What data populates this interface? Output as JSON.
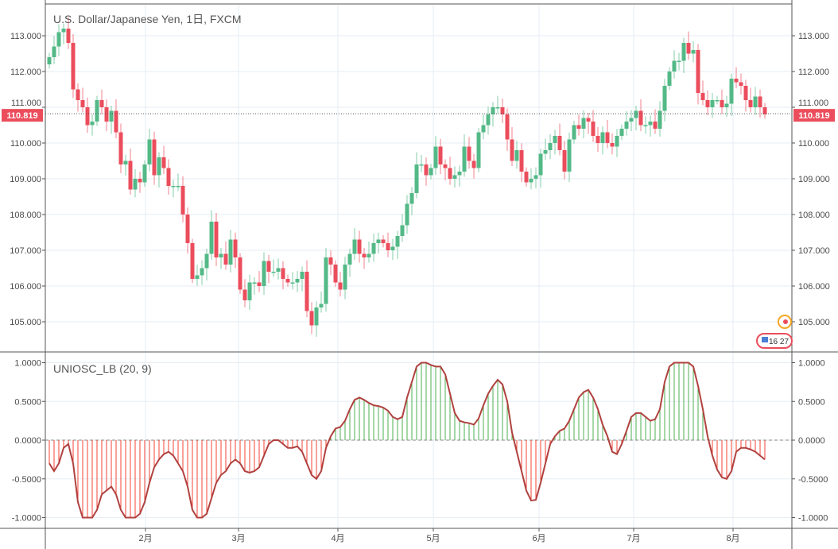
{
  "chart_data": [
    {
      "type": "candlestick",
      "title": "U.S. Dollar/Japanese Yen, 1日, FXCM",
      "yticks": [
        "113.000",
        "112.000",
        "111.000",
        "110.000",
        "109.000",
        "108.000",
        "107.000",
        "106.000",
        "105.000"
      ],
      "ylim": [
        104.2,
        113.9
      ],
      "last_price": "110.819",
      "colors": {
        "up": "#53b987",
        "down": "#eb4d5c",
        "grid": "#e6eef4"
      },
      "closes": [
        112.4,
        112.7,
        113.1,
        113.2,
        112.8,
        111.5,
        111.2,
        111.0,
        110.5,
        110.6,
        111.2,
        111.0,
        110.6,
        110.9,
        110.3,
        109.4,
        109.5,
        108.7,
        109.0,
        108.9,
        109.4,
        110.1,
        109.1,
        109.6,
        109.3,
        108.8,
        108.8,
        108.8,
        108.0,
        107.2,
        106.2,
        106.3,
        106.5,
        106.9,
        107.8,
        106.8,
        106.9,
        106.6,
        107.3,
        106.8,
        105.9,
        105.6,
        106.1,
        106.1,
        106.0,
        106.7,
        106.4,
        106.4,
        106.5,
        106.2,
        106.1,
        106.1,
        106.2,
        106.4,
        105.3,
        104.9,
        105.4,
        105.5,
        106.8,
        106.6,
        106.1,
        105.9,
        106.6,
        106.9,
        107.3,
        106.9,
        106.8,
        106.9,
        107.2,
        107.3,
        107.2,
        107.0,
        107.1,
        107.4,
        107.7,
        108.3,
        108.6,
        109.4,
        109.4,
        109.1,
        109.3,
        109.9,
        109.4,
        109.3,
        109.0,
        109.1,
        109.2,
        109.9,
        109.5,
        109.3,
        110.3,
        110.5,
        110.8,
        111.0,
        111.0,
        110.8,
        110.1,
        109.5,
        109.8,
        109.2,
        108.9,
        109.0,
        109.1,
        109.7,
        109.8,
        110.0,
        110.2,
        109.8,
        109.2,
        110.1,
        110.5,
        110.4,
        110.7,
        110.6,
        110.2,
        110.0,
        110.3,
        110.0,
        109.9,
        110.2,
        110.4,
        110.6,
        110.7,
        110.9,
        110.5,
        110.5,
        110.6,
        110.4,
        110.9,
        111.6,
        112.0,
        112.3,
        112.3,
        112.8,
        112.5,
        112.6,
        111.4,
        111.2,
        111.0,
        111.2,
        111.2,
        111.0,
        111.1,
        111.8,
        111.7,
        111.6,
        111.2,
        111.0,
        111.3,
        111.0,
        110.8
      ]
    },
    {
      "type": "line+histogram",
      "title": "UNIOSC_LB (20, 9)",
      "yticks": [
        "1.0000",
        "0.5000",
        "0.0000",
        "-0.5000",
        "-1.0000"
      ],
      "ylim": [
        -1.1,
        1.05
      ],
      "colors": {
        "line": "#b0413e",
        "pos": "#4caf50",
        "neg": "#f44336"
      },
      "values": [
        -0.3,
        -0.4,
        -0.3,
        -0.1,
        -0.05,
        -0.3,
        -0.8,
        -1.0,
        -1.0,
        -1.0,
        -0.9,
        -0.7,
        -0.65,
        -0.6,
        -0.7,
        -0.9,
        -1.0,
        -1.0,
        -1.0,
        -0.95,
        -0.8,
        -0.55,
        -0.35,
        -0.25,
        -0.18,
        -0.15,
        -0.2,
        -0.3,
        -0.4,
        -0.6,
        -0.9,
        -1.0,
        -1.0,
        -0.95,
        -0.75,
        -0.55,
        -0.45,
        -0.4,
        -0.3,
        -0.25,
        -0.3,
        -0.4,
        -0.42,
        -0.4,
        -0.35,
        -0.2,
        -0.05,
        0.0,
        0.0,
        -0.05,
        -0.1,
        -0.1,
        -0.08,
        -0.15,
        -0.3,
        -0.45,
        -0.5,
        -0.4,
        -0.1,
        0.05,
        0.15,
        0.17,
        0.25,
        0.4,
        0.52,
        0.55,
        0.52,
        0.48,
        0.45,
        0.44,
        0.42,
        0.38,
        0.3,
        0.27,
        0.3,
        0.55,
        0.75,
        0.95,
        1.0,
        1.0,
        0.97,
        0.95,
        0.95,
        0.85,
        0.6,
        0.35,
        0.25,
        0.23,
        0.22,
        0.2,
        0.28,
        0.45,
        0.6,
        0.7,
        0.78,
        0.72,
        0.5,
        0.1,
        -0.15,
        -0.4,
        -0.65,
        -0.78,
        -0.77,
        -0.55,
        -0.3,
        -0.05,
        0.05,
        0.12,
        0.15,
        0.25,
        0.4,
        0.55,
        0.62,
        0.65,
        0.55,
        0.4,
        0.2,
        0.05,
        -0.15,
        -0.18,
        -0.05,
        0.12,
        0.3,
        0.35,
        0.35,
        0.3,
        0.25,
        0.27,
        0.4,
        0.75,
        0.95,
        1.0,
        1.0,
        1.0,
        1.0,
        0.95,
        0.7,
        0.4,
        0.05,
        -0.2,
        -0.38,
        -0.48,
        -0.5,
        -0.4,
        -0.15,
        -0.1,
        -0.1,
        -0.12,
        -0.15,
        -0.2,
        -0.25
      ]
    }
  ],
  "xaxis": {
    "months": [
      "2月",
      "3月",
      "4月",
      "5月",
      "6月",
      "7月",
      "8月"
    ]
  },
  "badge_text": "16 27"
}
